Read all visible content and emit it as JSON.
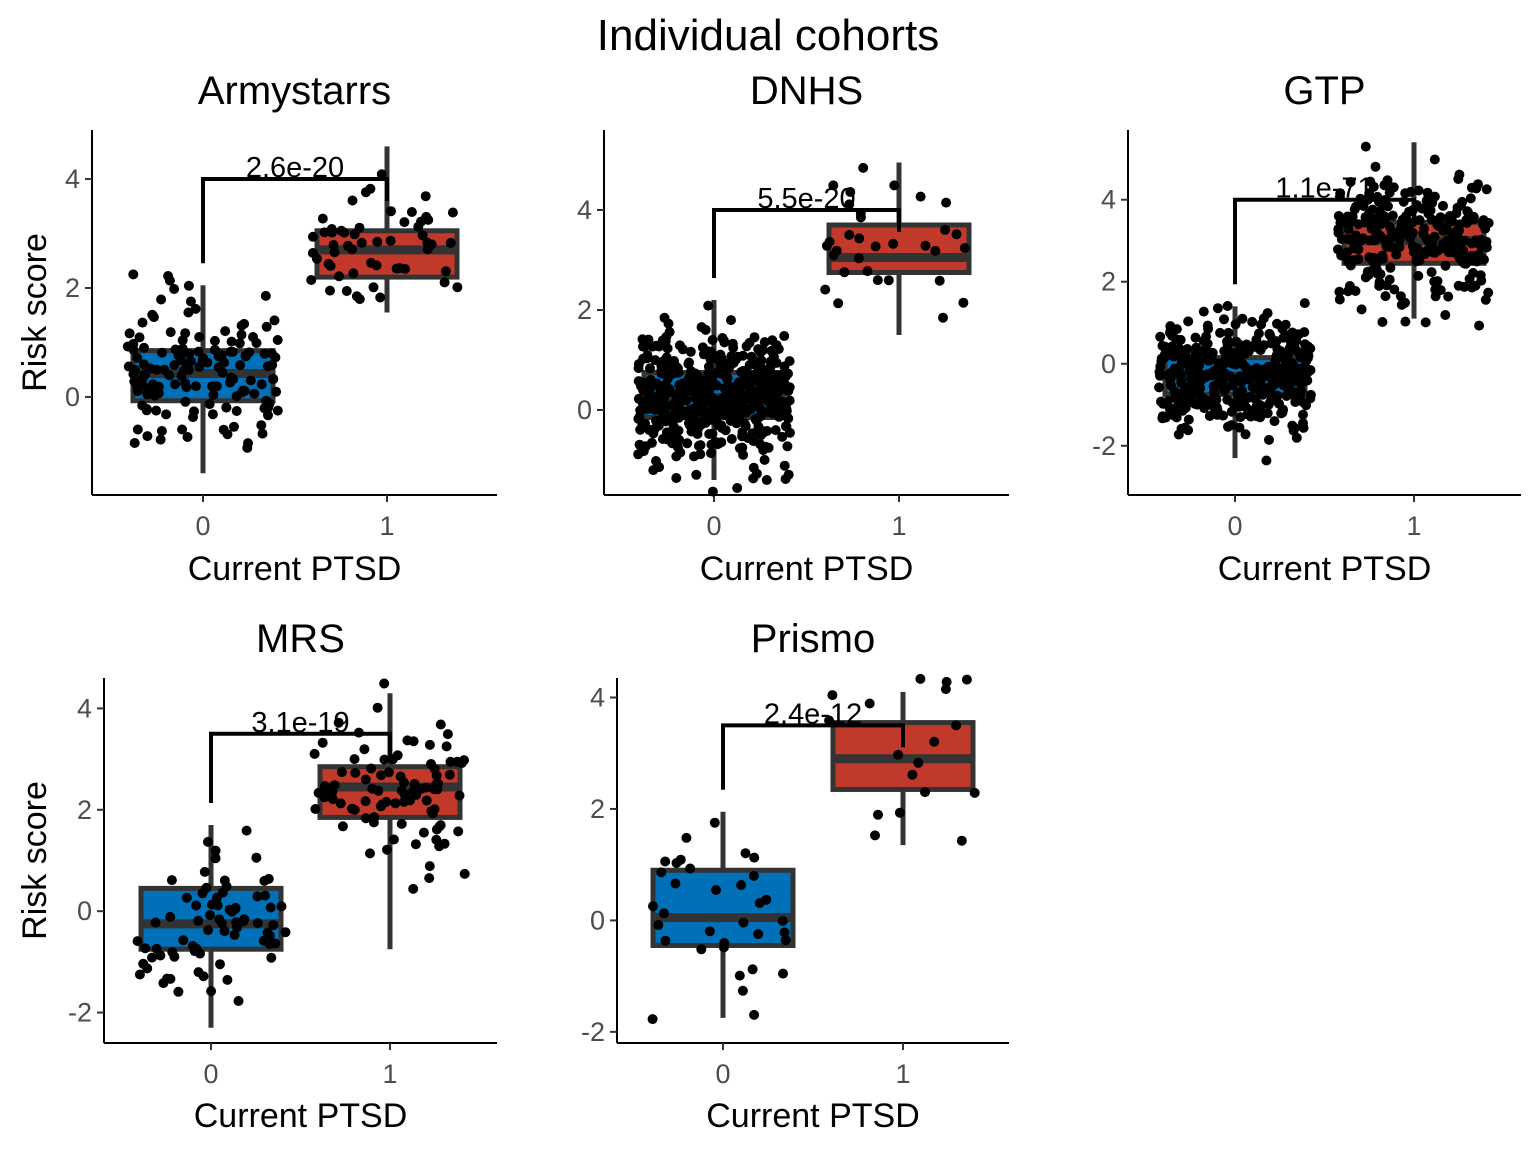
{
  "title": "Individual cohorts",
  "colors": {
    "group0": "#0071b8",
    "group1": "#c0392b",
    "box_outline": "#333333",
    "points": "#000000",
    "bracket": "#000000",
    "axis": "#000000"
  },
  "chart_data": [
    {
      "type": "box",
      "title": "Armystarrs",
      "xlabel": "Current PTSD",
      "ylabel": "Risk score",
      "categories": [
        "0",
        "1"
      ],
      "y_ticks": [
        0,
        2,
        4
      ],
      "ylim": [
        -1.8,
        4.9
      ],
      "boxes": [
        {
          "category": "0",
          "whisker_low": -1.4,
          "q1": -0.07,
          "median": 0.43,
          "q3": 0.85,
          "whisker_high": 2.05,
          "n_points": 150,
          "seed": 11
        },
        {
          "category": "1",
          "whisker_low": 1.55,
          "q1": 2.2,
          "median": 2.7,
          "q3": 3.05,
          "whisker_high": 4.6,
          "n_points": 55,
          "seed": 12
        }
      ],
      "p_value": "2.6e-20",
      "bracket_y": 4.0
    },
    {
      "type": "box",
      "title": "DNHS",
      "xlabel": "Current PTSD",
      "ylabel": "",
      "categories": [
        "0",
        "1"
      ],
      "y_ticks": [
        0,
        2,
        4
      ],
      "ylim": [
        -1.7,
        5.6
      ],
      "boxes": [
        {
          "category": "0",
          "whisker_low": -1.4,
          "q1": -0.15,
          "median": 0.25,
          "q3": 0.75,
          "whisker_high": 2.2,
          "n_points": 500,
          "seed": 21
        },
        {
          "category": "1",
          "whisker_low": 1.5,
          "q1": 2.75,
          "median": 3.05,
          "q3": 3.7,
          "whisker_high": 4.95,
          "n_points": 32,
          "seed": 22
        }
      ],
      "p_value": "5.5e-20",
      "bracket_y": 4.0
    },
    {
      "type": "box",
      "title": "GTP",
      "xlabel": "Current PTSD",
      "ylabel": "",
      "categories": [
        "0",
        "1"
      ],
      "y_ticks": [
        -2,
        0,
        2,
        4
      ],
      "ylim": [
        -3.2,
        5.7
      ],
      "boxes": [
        {
          "category": "0",
          "whisker_low": -2.3,
          "q1": -0.75,
          "median": -0.3,
          "q3": 0.15,
          "whisker_high": 1.4,
          "n_points": 380,
          "seed": 31
        },
        {
          "category": "1",
          "whisker_low": 1.1,
          "q1": 2.45,
          "median": 3.0,
          "q3": 3.45,
          "whisker_high": 5.4,
          "n_points": 260,
          "seed": 32
        }
      ],
      "p_value": "1.1e-71",
      "bracket_y": 4.0
    },
    {
      "type": "box",
      "title": "MRS",
      "xlabel": "Current PTSD",
      "ylabel": "Risk score",
      "categories": [
        "0",
        "1"
      ],
      "y_ticks": [
        -2,
        0,
        2,
        4
      ],
      "ylim": [
        -2.6,
        4.6
      ],
      "boxes": [
        {
          "category": "0",
          "whisker_low": -2.3,
          "q1": -0.75,
          "median": -0.25,
          "q3": 0.45,
          "whisker_high": 1.7,
          "n_points": 75,
          "seed": 41
        },
        {
          "category": "1",
          "whisker_low": -0.75,
          "q1": 1.85,
          "median": 2.45,
          "q3": 2.85,
          "whisker_high": 4.3,
          "n_points": 90,
          "seed": 42
        }
      ],
      "p_value": "3.1e-19",
      "bracket_y": 3.5
    },
    {
      "type": "box",
      "title": "Prismo",
      "xlabel": "Current PTSD",
      "ylabel": "",
      "categories": [
        "0",
        "1"
      ],
      "y_ticks": [
        -2,
        0,
        2,
        4
      ],
      "ylim": [
        -2.2,
        4.35
      ],
      "boxes": [
        {
          "category": "0",
          "whisker_low": -1.75,
          "q1": -0.45,
          "median": 0.05,
          "q3": 0.9,
          "whisker_high": 1.95,
          "n_points": 34,
          "seed": 51
        },
        {
          "category": "1",
          "whisker_low": 1.35,
          "q1": 2.35,
          "median": 2.9,
          "q3": 3.55,
          "whisker_high": 4.1,
          "n_points": 18,
          "seed": 52
        }
      ],
      "p_value": "2.4e-12",
      "bracket_y": 3.5
    }
  ]
}
